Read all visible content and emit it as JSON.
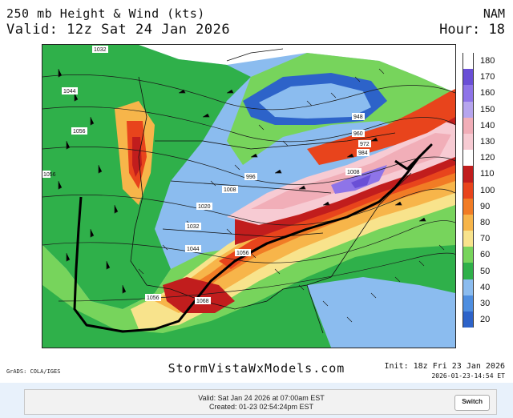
{
  "header": {
    "product": "250 mb Height & Wind (kts)",
    "valid": "Valid: 12z Sat 24 Jan 2026",
    "model": "NAM",
    "hour": "Hour: 18"
  },
  "map": {
    "height_labels": [
      "1032",
      "1044",
      "1056",
      "1020",
      "1008",
      "996",
      "1032",
      "1044",
      "1056",
      "1056",
      "1068",
      "1056",
      "948",
      "960",
      "972",
      "984",
      "1008"
    ]
  },
  "colorbar": {
    "ticks": [
      "180",
      "170",
      "160",
      "150",
      "140",
      "130",
      "120",
      "110",
      "100",
      "90",
      "80",
      "70",
      "60",
      "50",
      "40",
      "30",
      "20"
    ],
    "colors": [
      "#ffffff",
      "#6a4fd6",
      "#8e74e8",
      "#b6a5ee",
      "#f1aeb8",
      "#f7cbd3",
      "#ffffff",
      "#c11d1d",
      "#e8441c",
      "#f17c25",
      "#f7b54a",
      "#f8e38c",
      "#77d45c",
      "#2fb04a",
      "#8bbcef",
      "#4e8ee0",
      "#2d63c9"
    ]
  },
  "footer": {
    "grads": "GrADS: COLA/IGES",
    "brand": "StormVistaWxModels.com",
    "init": "Init: 18z Fri 23 Jan 2026",
    "created_stamp": "2026-01-23-14:54  ET"
  },
  "status_bar": {
    "valid_line": "Valid: Sat Jan 24 2026 at 07:00am EST",
    "created_line": "Created: 01-23 02:54:24pm EST",
    "switch_label": "Switch"
  }
}
